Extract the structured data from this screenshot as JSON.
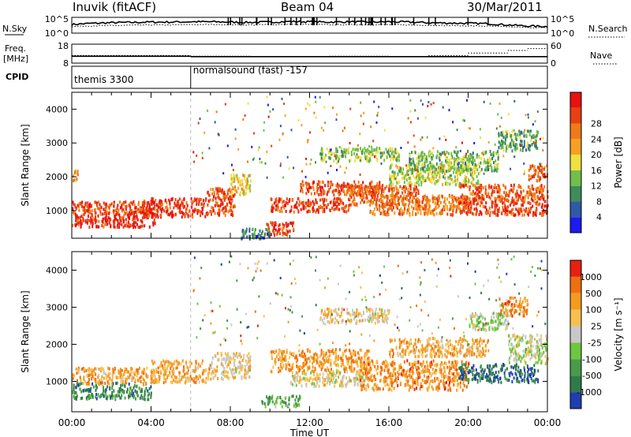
{
  "header": {
    "station": "Inuvik (fitACF)",
    "beam": "Beam 04",
    "date": "30/Mar/2011"
  },
  "strip_labels": {
    "nsky": "N.Sky",
    "nsearch": "N.Search",
    "freq": "Freq.",
    "freq_unit": "[MHz]",
    "nave": "Nave",
    "cpid": "CPID"
  },
  "chart_data": [
    {
      "type": "line",
      "panel": "noise",
      "series": [
        {
          "name": "N.Sky",
          "style": "solid"
        },
        {
          "name": "N.Search",
          "style": "dotted"
        }
      ],
      "left_ticks": [
        "10^5",
        "10^0"
      ],
      "right_ticks": [
        "10^5",
        "10^0"
      ],
      "x_hours": [
        0,
        1,
        2,
        3,
        4,
        5,
        6,
        7,
        8,
        9,
        10,
        11,
        12,
        13,
        14,
        15,
        16,
        17,
        18,
        19,
        20,
        21,
        22,
        23,
        24
      ],
      "sky_level": [
        0.55,
        0.62,
        0.66,
        0.68,
        0.7,
        0.7,
        0.72,
        0.72,
        0.7,
        0.68,
        0.7,
        0.74,
        0.72,
        0.7,
        0.72,
        0.7,
        0.72,
        0.7,
        0.66,
        0.64,
        0.62,
        0.6,
        0.52,
        0.45,
        0.42
      ],
      "search_level": [
        0.42,
        0.46,
        0.48,
        0.5,
        0.52,
        0.52,
        0.54,
        0.55,
        0.54,
        0.52,
        0.54,
        0.56,
        0.55,
        0.53,
        0.54,
        0.53,
        0.54,
        0.52,
        0.5,
        0.48,
        0.46,
        0.44,
        0.4,
        0.36,
        0.34
      ]
    },
    {
      "type": "line",
      "panel": "frequency",
      "left_ticks": [
        "18",
        "8"
      ],
      "right_ticks": [
        "60",
        "0"
      ],
      "freq_mhz": [
        {
          "t0": 0,
          "t1": 6,
          "v": 11.6
        },
        {
          "t0": 6,
          "t1": 24,
          "v": 11.4
        }
      ],
      "nave": [
        {
          "t0": 0,
          "t1": 6,
          "v": 24
        },
        {
          "t0": 6,
          "t1": 9,
          "v": 22
        },
        {
          "t0": 9,
          "t1": 13,
          "v": 20
        },
        {
          "t0": 13,
          "t1": 16,
          "v": 22
        },
        {
          "t0": 16,
          "t1": 18,
          "v": 20
        },
        {
          "t0": 18,
          "t1": 20,
          "v": 24
        },
        {
          "t0": 20,
          "t1": 22,
          "v": 32
        },
        {
          "t0": 22,
          "t1": 23,
          "v": 40
        },
        {
          "t0": 23,
          "t1": 24,
          "v": 46
        }
      ]
    },
    {
      "type": "table",
      "panel": "cpid",
      "segments": [
        {
          "start_hour": 0,
          "label": "themis 3300"
        },
        {
          "start_hour": 6,
          "label": "normalsound (fast) -157"
        }
      ]
    },
    {
      "type": "heatmap",
      "panel": "power",
      "xlabel": "",
      "ylabel": "Slant Range [km]",
      "xlim": [
        0,
        24
      ],
      "ylim": [
        180,
        4500
      ],
      "yticks": [
        1000,
        2000,
        3000,
        4000
      ],
      "colorbar": {
        "label": "Power [dB]",
        "ticks": [
          "4",
          "8",
          "12",
          "16",
          "20",
          "24",
          "28"
        ],
        "colors": [
          "#1b1bf0",
          "#2f5aa6",
          "#3f8c5a",
          "#6fbf4a",
          "#f0e040",
          "#f7a020",
          "#ef7a18",
          "#e84010",
          "#e81010"
        ]
      },
      "regions": [
        {
          "t0": 0.0,
          "t1": 4.2,
          "r0": 550,
          "r1": 1000,
          "level": 0.95
        },
        {
          "t0": 0.0,
          "t1": 4.2,
          "r0": 950,
          "r1": 1300,
          "level": 0.85
        },
        {
          "t0": 0.0,
          "t1": 0.3,
          "r0": 1900,
          "r1": 2250,
          "level": 0.6
        },
        {
          "t0": 3.5,
          "t1": 6.8,
          "r0": 850,
          "r1": 1400,
          "level": 0.92
        },
        {
          "t0": 6.8,
          "t1": 8.2,
          "r0": 900,
          "r1": 1700,
          "level": 0.85
        },
        {
          "t0": 8.0,
          "t1": 9.0,
          "r0": 1500,
          "r1": 2100,
          "level": 0.55
        },
        {
          "t0": 9.8,
          "t1": 11.2,
          "r0": 300,
          "r1": 700,
          "level": 0.9
        },
        {
          "t0": 10.0,
          "t1": 14.0,
          "r0": 1000,
          "r1": 1400,
          "level": 0.88
        },
        {
          "t0": 11.5,
          "t1": 15.5,
          "r0": 1500,
          "r1": 1900,
          "level": 0.86
        },
        {
          "t0": 14.0,
          "t1": 17.5,
          "r0": 1200,
          "r1": 1800,
          "level": 0.8
        },
        {
          "t0": 15.0,
          "t1": 20.0,
          "r0": 900,
          "r1": 1500,
          "level": 0.75
        },
        {
          "t0": 16.0,
          "t1": 20.5,
          "r0": 1800,
          "r1": 2400,
          "level": 0.45
        },
        {
          "t0": 17.0,
          "t1": 21.5,
          "r0": 2200,
          "r1": 2800,
          "level": 0.35
        },
        {
          "t0": 19.5,
          "t1": 24.0,
          "r0": 900,
          "r1": 1300,
          "level": 0.9
        },
        {
          "t0": 19.5,
          "t1": 24.0,
          "r0": 1300,
          "r1": 1800,
          "level": 0.82
        },
        {
          "t0": 21.5,
          "t1": 23.5,
          "r0": 2800,
          "r1": 3400,
          "level": 0.3
        },
        {
          "t0": 23.0,
          "t1": 24.0,
          "r0": 1900,
          "r1": 2400,
          "level": 0.8
        },
        {
          "t0": 12.5,
          "t1": 16.5,
          "r0": 2500,
          "r1": 2900,
          "level": 0.4
        },
        {
          "t0": 8.5,
          "t1": 10.0,
          "r0": 200,
          "r1": 500,
          "level": 0.2
        }
      ]
    },
    {
      "type": "heatmap",
      "panel": "velocity",
      "xlabel": "Time UT",
      "ylabel": "Slant Range [km]",
      "xlim": [
        0,
        24
      ],
      "ylim": [
        180,
        4500
      ],
      "xticks": [
        "00:00",
        "04:00",
        "08:00",
        "12:00",
        "16:00",
        "20:00",
        "00:00"
      ],
      "yticks": [
        1000,
        2000,
        3000,
        4000
      ],
      "colorbar": {
        "label": "Velocity [m s⁻¹]",
        "ticks": [
          "1000",
          "500",
          "100",
          "25",
          "-25",
          "-100",
          "-500",
          "-1000"
        ],
        "colors": [
          "#1f3fb0",
          "#2f7a4a",
          "#4a9a4a",
          "#6cc83c",
          "#c8c8c8",
          "#f7c050",
          "#f59a20",
          "#ef6f10",
          "#e82010"
        ]
      },
      "regions": [
        {
          "t0": 0.0,
          "t1": 4.0,
          "r0": 550,
          "r1": 1000,
          "level": 0.2
        },
        {
          "t0": 0.0,
          "t1": 4.2,
          "r0": 950,
          "r1": 1400,
          "level": 0.72
        },
        {
          "t0": 4.0,
          "t1": 7.0,
          "r0": 1000,
          "r1": 1600,
          "level": 0.7
        },
        {
          "t0": 7.0,
          "t1": 9.0,
          "r0": 1100,
          "r1": 1800,
          "level": 0.6
        },
        {
          "t0": 9.5,
          "t1": 11.5,
          "r0": 350,
          "r1": 650,
          "level": 0.3
        },
        {
          "t0": 10.0,
          "t1": 15.0,
          "r0": 1300,
          "r1": 1900,
          "level": 0.75
        },
        {
          "t0": 11.0,
          "t1": 15.0,
          "r0": 900,
          "r1": 1300,
          "level": 0.55
        },
        {
          "t0": 14.5,
          "t1": 20.0,
          "r0": 800,
          "r1": 1600,
          "level": 0.78
        },
        {
          "t0": 16.0,
          "t1": 21.0,
          "r0": 1700,
          "r1": 2200,
          "level": 0.7
        },
        {
          "t0": 19.5,
          "t1": 23.5,
          "r0": 1000,
          "r1": 1500,
          "level": 0.1
        },
        {
          "t0": 22.0,
          "t1": 24.0,
          "r0": 1500,
          "r1": 2300,
          "level": 0.48
        },
        {
          "t0": 21.5,
          "t1": 23.0,
          "r0": 2800,
          "r1": 3300,
          "level": 0.78
        },
        {
          "t0": 20.0,
          "t1": 22.0,
          "r0": 2400,
          "r1": 2900,
          "level": 0.45
        },
        {
          "t0": 12.5,
          "t1": 16.0,
          "r0": 2600,
          "r1": 3000,
          "level": 0.6
        }
      ]
    }
  ]
}
